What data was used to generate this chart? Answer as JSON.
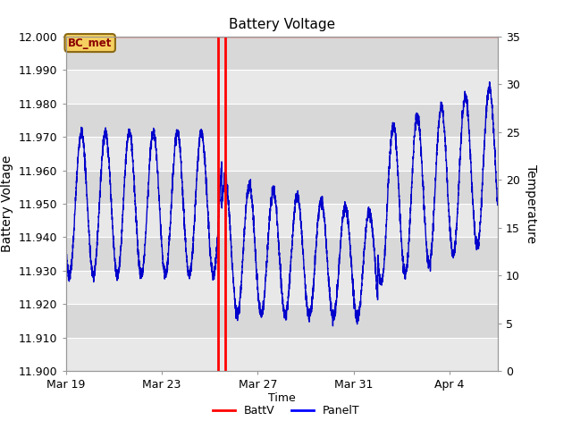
{
  "title": "Battery Voltage",
  "xlabel": "Time",
  "ylabel_left": "Battery Voltage",
  "ylabel_right": "Temperature",
  "ylim_left": [
    11.9,
    12.0
  ],
  "ylim_right": [
    0,
    35
  ],
  "yticks_left": [
    11.9,
    11.91,
    11.92,
    11.93,
    11.94,
    11.95,
    11.96,
    11.97,
    11.98,
    11.99,
    12.0
  ],
  "yticks_right": [
    0,
    5,
    10,
    15,
    20,
    25,
    30,
    35
  ],
  "xticklabels": [
    "Mar 19",
    "Mar 23",
    "Mar 27",
    "Mar 31",
    "Apr 4"
  ],
  "xtick_days": [
    0,
    4,
    8,
    12,
    16
  ],
  "n_days": 18,
  "vline1_day": 6.35,
  "vline2_day": 6.65,
  "annotation_label": "BC_met",
  "band_color_light": "#e8e8e8",
  "band_color_dark": "#d8d8d8",
  "line_color_blue": "#0000cc",
  "line_color_red": "red",
  "hline_color": "red",
  "title_fontsize": 11,
  "axis_fontsize": 9,
  "label_fontsize": 10
}
